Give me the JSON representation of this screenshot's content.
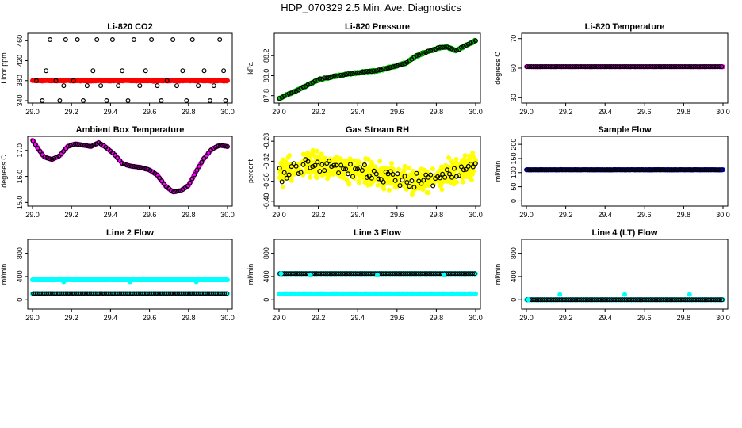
{
  "title": "HDP_070329  2.5 Min. Ave. Diagnostics",
  "chart_data": [
    {
      "type": "scatter",
      "title": "Li-820 CO2",
      "ylabel": "Licor ppm",
      "xlabel": "",
      "xlim": [
        29.0,
        30.0
      ],
      "ylim": [
        340,
        470
      ],
      "xticks": [
        29.0,
        29.2,
        29.4,
        29.6,
        29.8,
        30.0
      ],
      "xtick_labels": [
        "29.0",
        "29.2",
        "29.4",
        "29.6",
        "29.8",
        "30.0"
      ],
      "yticks": [
        340,
        380,
        420,
        460
      ],
      "ytick_labels": [
        "340",
        "380",
        "420",
        "460"
      ],
      "series": [
        {
          "name": "main",
          "color": "#ff0000",
          "style": "dense",
          "base": 380,
          "wave": [
            0,
            0
          ],
          "noise": 1.5
        },
        {
          "name": "overlay",
          "color": "#000000",
          "style": "sparse",
          "values": [
            [
              29.02,
              380
            ],
            [
              29.05,
              340
            ],
            [
              29.07,
              400
            ],
            [
              29.09,
              462
            ],
            [
              29.12,
              380
            ],
            [
              29.14,
              340
            ],
            [
              29.16,
              370
            ],
            [
              29.17,
              462
            ],
            [
              29.21,
              380
            ],
            [
              29.23,
              462
            ],
            [
              29.26,
              340
            ],
            [
              29.28,
              370
            ],
            [
              29.31,
              400
            ],
            [
              29.33,
              462
            ],
            [
              29.35,
              370
            ],
            [
              29.38,
              340
            ],
            [
              29.41,
              462
            ],
            [
              29.44,
              370
            ],
            [
              29.46,
              400
            ],
            [
              29.49,
              340
            ],
            [
              29.52,
              462
            ],
            [
              29.55,
              370
            ],
            [
              29.58,
              400
            ],
            [
              29.61,
              462
            ],
            [
              29.64,
              370
            ],
            [
              29.66,
              340
            ],
            [
              29.69,
              380
            ],
            [
              29.72,
              462
            ],
            [
              29.74,
              370
            ],
            [
              29.77,
              400
            ],
            [
              29.79,
              340
            ],
            [
              29.82,
              462
            ],
            [
              29.85,
              370
            ],
            [
              29.88,
              400
            ],
            [
              29.91,
              340
            ],
            [
              29.93,
              370
            ],
            [
              29.96,
              462
            ],
            [
              29.98,
              400
            ],
            [
              29.99,
              340
            ]
          ]
        }
      ]
    },
    {
      "type": "scatter",
      "title": "Li-820 Pressure",
      "ylabel": "kPa",
      "xlabel": "",
      "xlim": [
        29.0,
        30.0
      ],
      "ylim": [
        87.75,
        88.4
      ],
      "xticks": [
        29.0,
        29.2,
        29.4,
        29.6,
        29.8,
        30.0
      ],
      "xtick_labels": [
        "29.0",
        "29.2",
        "29.4",
        "29.6",
        "29.8",
        "30.0"
      ],
      "yticks": [
        87.8,
        88.0,
        88.2
      ],
      "ytick_labels": [
        "87.8",
        "88.0",
        "88.2"
      ],
      "series": [
        {
          "name": "main",
          "color": "#00cc00",
          "style": "dense",
          "trend": [
            [
              29.0,
              87.77
            ],
            [
              29.1,
              87.86
            ],
            [
              29.2,
              87.96
            ],
            [
              29.3,
              88.0
            ],
            [
              29.4,
              88.03
            ],
            [
              29.5,
              88.05
            ],
            [
              29.6,
              88.1
            ],
            [
              29.65,
              88.13
            ],
            [
              29.7,
              88.2
            ],
            [
              29.8,
              88.27
            ],
            [
              29.85,
              88.29
            ],
            [
              29.9,
              88.25
            ],
            [
              29.95,
              88.3
            ],
            [
              30.0,
              88.35
            ]
          ],
          "noise": 0.012
        },
        {
          "name": "overlay",
          "color": "#000000",
          "style": "follow",
          "step": 0.012,
          "jitter": 0.008
        }
      ]
    },
    {
      "type": "scatter",
      "title": "Li-820 Temperature",
      "ylabel": "degrees C",
      "xlabel": "",
      "xlim": [
        29.0,
        30.0
      ],
      "ylim": [
        28,
        72
      ],
      "xticks": [
        29.0,
        29.2,
        29.4,
        29.6,
        29.8,
        30.0
      ],
      "xtick_labels": [
        "29.0",
        "29.2",
        "29.4",
        "29.6",
        "29.8",
        "30.0"
      ],
      "yticks": [
        30,
        50,
        70
      ],
      "ytick_labels": [
        "30",
        "50",
        "70"
      ],
      "series": [
        {
          "name": "main",
          "color": "#ff00ff",
          "style": "dense",
          "base": 51,
          "wave": [
            0,
            0
          ],
          "noise": 0.1
        },
        {
          "name": "overlay",
          "color": "#000000",
          "style": "follow",
          "step": 0.011,
          "jitter": 0
        }
      ]
    },
    {
      "type": "scatter",
      "title": "Ambient Box Temperature",
      "ylabel": "degrees C",
      "xlabel": "",
      "xlim": [
        29.0,
        30.0
      ],
      "ylim": [
        14.95,
        17.45
      ],
      "xticks": [
        29.0,
        29.2,
        29.4,
        29.6,
        29.8,
        30.0
      ],
      "xtick_labels": [
        "29.0",
        "29.2",
        "29.4",
        "29.6",
        "29.8",
        "30.0"
      ],
      "yticks": [
        15.0,
        16.0,
        17.0
      ],
      "ytick_labels": [
        "15.0",
        "16.0",
        "17.0"
      ],
      "series": [
        {
          "name": "main",
          "color": "#ff00ff",
          "style": "dense",
          "trend": [
            [
              29.0,
              17.4
            ],
            [
              29.03,
              17.05
            ],
            [
              29.06,
              16.75
            ],
            [
              29.1,
              16.65
            ],
            [
              29.14,
              16.8
            ],
            [
              29.18,
              17.15
            ],
            [
              29.22,
              17.25
            ],
            [
              29.26,
              17.2
            ],
            [
              29.3,
              17.15
            ],
            [
              29.34,
              17.3
            ],
            [
              29.38,
              17.1
            ],
            [
              29.42,
              16.85
            ],
            [
              29.46,
              16.5
            ],
            [
              29.5,
              16.4
            ],
            [
              29.55,
              16.35
            ],
            [
              29.6,
              16.25
            ],
            [
              29.64,
              16.05
            ],
            [
              29.68,
              15.65
            ],
            [
              29.72,
              15.4
            ],
            [
              29.76,
              15.45
            ],
            [
              29.8,
              15.65
            ],
            [
              29.84,
              16.2
            ],
            [
              29.88,
              16.7
            ],
            [
              29.92,
              17.05
            ],
            [
              29.96,
              17.2
            ],
            [
              30.0,
              17.15
            ]
          ],
          "noise": 0.015
        },
        {
          "name": "overlay",
          "color": "#000000",
          "style": "follow",
          "step": 0.012,
          "jitter": 0.01
        }
      ]
    },
    {
      "type": "scatter",
      "title": "Gas Stream RH",
      "ylabel": "percent",
      "xlabel": "",
      "xlim": [
        29.0,
        30.0
      ],
      "ylim": [
        -0.405,
        -0.275
      ],
      "xticks": [
        29.0,
        29.2,
        29.4,
        29.6,
        29.8,
        30.0
      ],
      "xtick_labels": [
        "29.0",
        "29.2",
        "29.4",
        "29.6",
        "29.8",
        "30.0"
      ],
      "yticks": [
        -0.4,
        -0.36,
        -0.32,
        -0.28
      ],
      "ytick_labels": [
        "-0.40",
        "-0.36",
        "-0.32",
        "-0.28"
      ],
      "series": [
        {
          "name": "main",
          "color": "#ffff00",
          "style": "cloud",
          "trend": [
            [
              29.0,
              -0.345
            ],
            [
              29.15,
              -0.325
            ],
            [
              29.3,
              -0.33
            ],
            [
              29.5,
              -0.345
            ],
            [
              29.65,
              -0.36
            ],
            [
              29.75,
              -0.36
            ],
            [
              29.9,
              -0.34
            ],
            [
              30.0,
              -0.33
            ]
          ],
          "noise": 0.035,
          "count": 650
        },
        {
          "name": "overlay",
          "color": "#000000",
          "style": "follow",
          "step": 0.012,
          "jitter": 0.022
        }
      ]
    },
    {
      "type": "scatter",
      "title": "Sample Flow",
      "ylabel": "ml/min",
      "xlabel": "",
      "xlim": [
        29.0,
        30.0
      ],
      "ylim": [
        -10,
        220
      ],
      "xticks": [
        29.0,
        29.2,
        29.4,
        29.6,
        29.8,
        30.0
      ],
      "xtick_labels": [
        "29.0",
        "29.2",
        "29.4",
        "29.6",
        "29.8",
        "30.0"
      ],
      "yticks": [
        0,
        50,
        100,
        150,
        200
      ],
      "ytick_labels": [
        "0",
        "50",
        "100",
        "150",
        "200"
      ],
      "series": [
        {
          "name": "main",
          "color": "#0000ff",
          "style": "dense",
          "base": 110,
          "wave": [
            0,
            0
          ],
          "noise": 1
        },
        {
          "name": "overlay",
          "color": "#000000",
          "style": "follow",
          "step": 0.011,
          "jitter": 0
        }
      ]
    },
    {
      "type": "scatter",
      "title": "Line 2 Flow",
      "ylabel": "ml/min",
      "xlabel": "",
      "xlim": [
        29.0,
        30.0
      ],
      "ylim": [
        -120,
        1000
      ],
      "xticks": [
        29.0,
        29.2,
        29.4,
        29.6,
        29.8,
        30.0
      ],
      "xtick_labels": [
        "29.0",
        "29.2",
        "29.4",
        "29.6",
        "29.8",
        "30.0"
      ],
      "yticks": [
        0,
        400,
        800
      ],
      "ytick_labels": [
        "0",
        "400",
        "800"
      ],
      "series": [
        {
          "name": "cyan-high",
          "color": "#00ffff",
          "style": "dense",
          "base": 345,
          "wave": [
            0,
            0
          ],
          "noise": 3
        },
        {
          "name": "cyan-low",
          "color": "#00ffff",
          "style": "dense",
          "base": 105,
          "wave": [
            0,
            0
          ],
          "noise": 2
        },
        {
          "name": "overlay",
          "color": "#000000",
          "style": "flat",
          "base": 105,
          "step": 0.011
        },
        {
          "name": "spikes",
          "color": "#00ffff",
          "style": "points",
          "values": [
            [
              29.16,
              310
            ],
            [
              29.5,
              310
            ],
            [
              29.84,
              310
            ]
          ]
        }
      ]
    },
    {
      "type": "scatter",
      "title": "Line 3 Flow",
      "ylabel": "ml/min",
      "xlabel": "",
      "xlim": [
        29.0,
        30.0
      ],
      "ylim": [
        -120,
        1000
      ],
      "xticks": [
        29.0,
        29.2,
        29.4,
        29.6,
        29.8,
        30.0
      ],
      "xtick_labels": [
        "29.0",
        "29.2",
        "29.4",
        "29.6",
        "29.8",
        "30.0"
      ],
      "yticks": [
        0,
        400,
        800
      ],
      "ytick_labels": [
        "0",
        "400",
        "800"
      ],
      "series": [
        {
          "name": "cyan-low",
          "color": "#00ffff",
          "style": "dense",
          "base": 100,
          "wave": [
            0,
            0
          ],
          "noise": 3
        },
        {
          "name": "cyan-high",
          "color": "#00ffff",
          "style": "dense",
          "base": 450,
          "wave": [
            0,
            0
          ],
          "noise": 2
        },
        {
          "name": "overlay",
          "color": "#000000",
          "style": "flat",
          "base": 450,
          "step": 0.011
        },
        {
          "name": "spikes",
          "color": "#00ffff",
          "style": "points",
          "values": [
            [
              29.01,
              450
            ],
            [
              29.16,
              430
            ],
            [
              29.5,
              430
            ],
            [
              29.84,
              430
            ]
          ]
        }
      ]
    },
    {
      "type": "scatter",
      "title": "Line 4 (LT) Flow",
      "ylabel": "ml/min",
      "xlabel": "",
      "xlim": [
        29.0,
        30.0
      ],
      "ylim": [
        -120,
        1000
      ],
      "xticks": [
        29.0,
        29.2,
        29.4,
        29.6,
        29.8,
        30.0
      ],
      "xtick_labels": [
        "29.0",
        "29.2",
        "29.4",
        "29.6",
        "29.8",
        "30.0"
      ],
      "yticks": [
        0,
        400,
        800
      ],
      "ytick_labels": [
        "0",
        "400",
        "800"
      ],
      "series": [
        {
          "name": "main",
          "color": "#00ffff",
          "style": "dense",
          "base": 0,
          "wave": [
            0,
            0
          ],
          "noise": 1
        },
        {
          "name": "overlay",
          "color": "#000000",
          "style": "flat",
          "base": 0,
          "step": 0.011
        },
        {
          "name": "spikes",
          "color": "#00ffff",
          "style": "points",
          "values": [
            [
              29.01,
              0
            ],
            [
              29.17,
              90
            ],
            [
              29.5,
              90
            ],
            [
              29.83,
              90
            ]
          ]
        }
      ]
    }
  ]
}
